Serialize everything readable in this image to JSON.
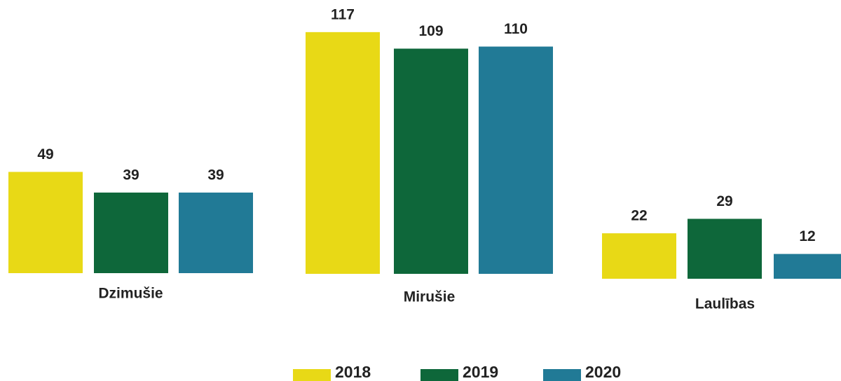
{
  "chart_data": {
    "type": "bar",
    "categories": [
      "Dzimušie",
      "Mirušie",
      "Laulības"
    ],
    "series": [
      {
        "name": "2018",
        "color": "#e8d916",
        "values": [
          49,
          117,
          22
        ]
      },
      {
        "name": "2019",
        "color": "#0e673a",
        "values": [
          39,
          109,
          29
        ]
      },
      {
        "name": "2020",
        "color": "#217a96",
        "values": [
          39,
          110,
          12
        ]
      }
    ],
    "legend": "bottom"
  }
}
